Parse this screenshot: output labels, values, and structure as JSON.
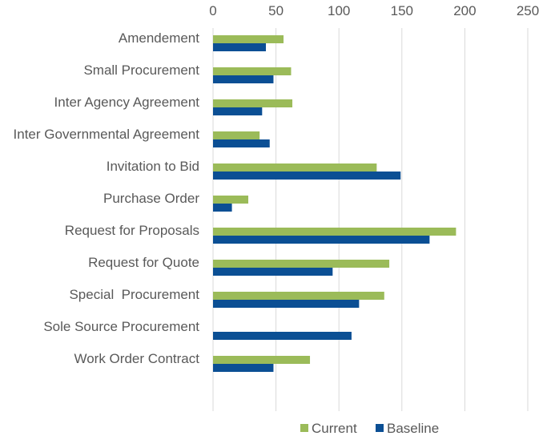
{
  "chart_data": {
    "type": "bar",
    "orientation": "horizontal",
    "title": "",
    "xlabel": "",
    "ylabel": "",
    "xlim": [
      0,
      250
    ],
    "xticks": [
      0,
      50,
      100,
      150,
      200,
      250
    ],
    "x_axis_position": "top",
    "grid": true,
    "legend_position": "bottom",
    "categories": [
      "Amendement",
      "Small Procurement",
      "Inter Agency Agreement",
      "Inter Governmental Agreement",
      "Invitation to Bid",
      "Purchase Order",
      "Request for Proposals",
      "Request for Quote",
      "Special  Procurement",
      "Sole Source Procurement",
      "Work Order Contract"
    ],
    "series": [
      {
        "name": "Current",
        "color": "#9bbb59",
        "values": [
          56,
          62,
          63,
          37,
          130,
          28,
          193,
          140,
          136,
          0,
          77
        ]
      },
      {
        "name": "Baseline",
        "color": "#0b4f94",
        "values": [
          42,
          48,
          39,
          45,
          149,
          15,
          172,
          95,
          116,
          110,
          48
        ]
      }
    ]
  }
}
